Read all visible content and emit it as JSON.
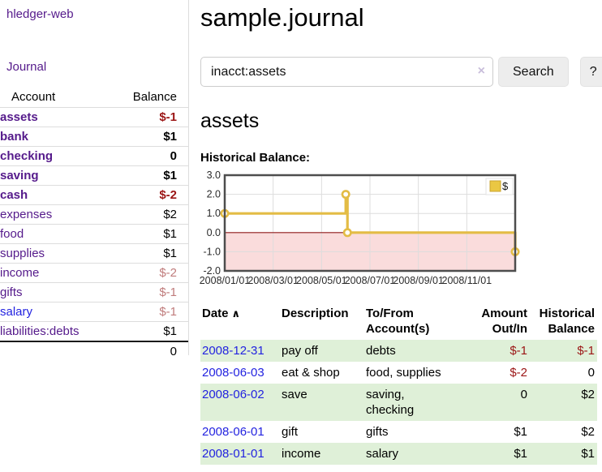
{
  "app": {
    "title": "hledger-web",
    "journal_link": "Journal"
  },
  "colors": {
    "link_purple": "#551A8B",
    "link_blue": "#2323e0",
    "negative_red": "#9b1515",
    "negative_muted": "#c07c7c",
    "row_stripe_green": "#dff0d8",
    "series_gold": "#e3bc45"
  },
  "sidebar": {
    "accounts": {
      "header_account": "Account",
      "header_balance": "Balance",
      "rows": [
        {
          "account": "assets",
          "balance": "$-1",
          "level": 1,
          "bold": true
        },
        {
          "account": "bank",
          "balance": "$1",
          "level": 2,
          "bold": true
        },
        {
          "account": "checking",
          "balance": "0",
          "level": 3,
          "bold": true
        },
        {
          "account": "saving",
          "balance": "$1",
          "level": 3,
          "bold": true
        },
        {
          "account": "cash",
          "balance": "$-2",
          "level": 2,
          "bold": true
        },
        {
          "account": "expenses",
          "balance": "$2",
          "level": 1,
          "bold": false
        },
        {
          "account": "food",
          "balance": "$1",
          "level": 2,
          "bold": false
        },
        {
          "account": "supplies",
          "balance": "$1",
          "level": 2,
          "bold": false
        },
        {
          "account": "income",
          "balance": "$-2",
          "level": 1,
          "bold": false
        },
        {
          "account": "gifts",
          "balance": "$-1",
          "level": 2,
          "bold": false
        },
        {
          "account": "salary",
          "balance": "$-1",
          "level": 2,
          "bold": false,
          "link_color": "blue"
        },
        {
          "account": "liabilities:debts",
          "balance": "$1",
          "level": 1,
          "bold": false
        }
      ],
      "total": "0"
    }
  },
  "header": {
    "title": "sample.journal"
  },
  "search": {
    "value": "inacct:assets",
    "clear_icon": "×",
    "button_label": "Search",
    "help_label": "?"
  },
  "account_page": {
    "heading": "assets",
    "chart_label": "Historical Balance:"
  },
  "chart_data": {
    "type": "line",
    "step": true,
    "title": "Historical Balance:",
    "xlabel": "",
    "ylabel": "",
    "xlim": [
      0,
      12
    ],
    "ylim": [
      -2,
      3
    ],
    "grid": true,
    "legend_position": "top-right",
    "series": [
      {
        "name": "$",
        "color": "#e3bc45",
        "points": [
          [
            0,
            1
          ],
          [
            5.0,
            2
          ],
          [
            5.07,
            0
          ],
          [
            12,
            -1
          ]
        ]
      }
    ],
    "x_ticks": [
      {
        "pos": 0,
        "label": "2008/01/01"
      },
      {
        "pos": 2,
        "label": "2008/03/01"
      },
      {
        "pos": 4,
        "label": "2008/05/01"
      },
      {
        "pos": 6,
        "label": "2008/07/01"
      },
      {
        "pos": 8,
        "label": "2008/09/01"
      },
      {
        "pos": 10,
        "label": "2008/11/01"
      }
    ],
    "y_ticks": [
      {
        "v": 3,
        "label": "3.0"
      },
      {
        "v": 2,
        "label": "2.0"
      },
      {
        "v": 1,
        "label": "1.0"
      },
      {
        "v": 0,
        "label": "0.0"
      },
      {
        "v": -1,
        "label": "-1.0"
      },
      {
        "v": -2,
        "label": "-2.0"
      }
    ],
    "zero_line_color": "#8f1c1c",
    "negative_fill": "#fadcdc",
    "legend": {
      "label": "$",
      "swatch_color": "#eac743",
      "swatch_border": "#c9a32f"
    }
  },
  "transactions": {
    "col_date": "Date",
    "sort_icon": "∧",
    "col_description": "Description",
    "col_accounts": "To/From\nAccount(s)",
    "col_amount": "Amount\nOut/In",
    "col_balance": "Historical\nBalance",
    "rows": [
      {
        "date": "2008-12-31",
        "description": "pay off",
        "accounts": "debts",
        "amount": "$-1",
        "balance": "$-1"
      },
      {
        "date": "2008-06-03",
        "description": "eat & shop",
        "accounts": "food, supplies",
        "amount": "$-2",
        "balance": "0"
      },
      {
        "date": "2008-06-02",
        "description": "save",
        "accounts": "saving,\nchecking",
        "amount": "0",
        "balance": "$2"
      },
      {
        "date": "2008-06-01",
        "description": "gift",
        "accounts": "gifts",
        "amount": "$1",
        "balance": "$2"
      },
      {
        "date": "2008-01-01",
        "description": "income",
        "accounts": "salary",
        "amount": "$1",
        "balance": "$1"
      }
    ]
  }
}
